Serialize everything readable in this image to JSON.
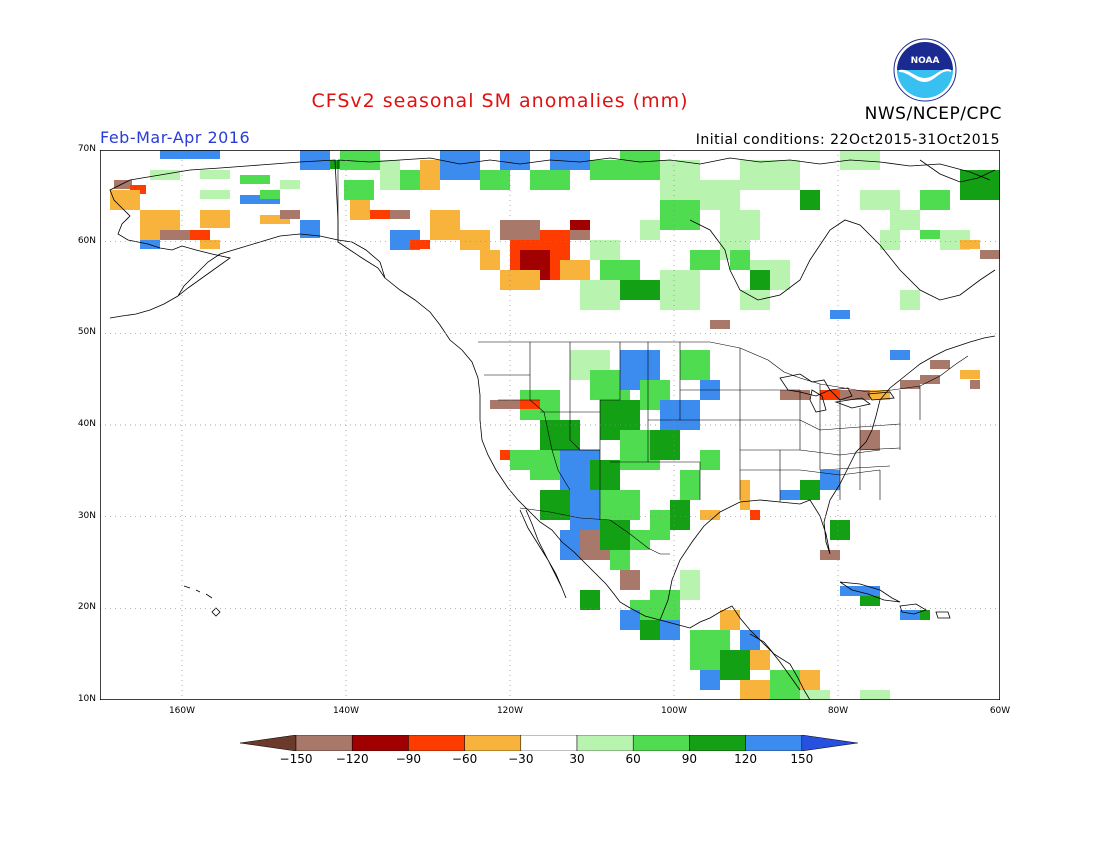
{
  "header": {
    "title": "CFSv2 seasonal SM anomalies (mm)",
    "agency": "NWS/NCEP/CPC",
    "period": "Feb-Mar-Apr 2016",
    "initial_conditions": "Initial conditions: 22Oct2015-31Oct2015",
    "logo_text": "NOAA"
  },
  "map": {
    "lat_labels": [
      "70N",
      "60N",
      "50N",
      "40N",
      "30N",
      "20N",
      "10N"
    ],
    "lon_labels": [
      "160W",
      "140W",
      "120W",
      "100W",
      "80W",
      "60W"
    ],
    "colors": {
      "le_-150": "#6b3a2a",
      "-150_-120": "#a8786a",
      "-120_-90": "#a00000",
      "-90_-60": "#ff3c00",
      "-60_-30": "#f8b33c",
      "-30_30": "#ffffff",
      "30_60": "#b8f4b0",
      "60_90": "#50dc50",
      "90_120": "#14a014",
      "120_150": "#3c8cf0",
      "ge_150": "#2850e0"
    }
  },
  "colorbar": {
    "tick_labels": [
      "-150",
      "-120",
      "-90",
      "-60",
      "-30",
      "30",
      "60",
      "90",
      "120",
      "150"
    ],
    "colors": [
      "#6b3a2a",
      "#a8786a",
      "#a00000",
      "#ff3c00",
      "#f8b33c",
      "#ffffff",
      "#b8f4b0",
      "#50dc50",
      "#14a014",
      "#3c8cf0",
      "#2850e0"
    ]
  }
}
